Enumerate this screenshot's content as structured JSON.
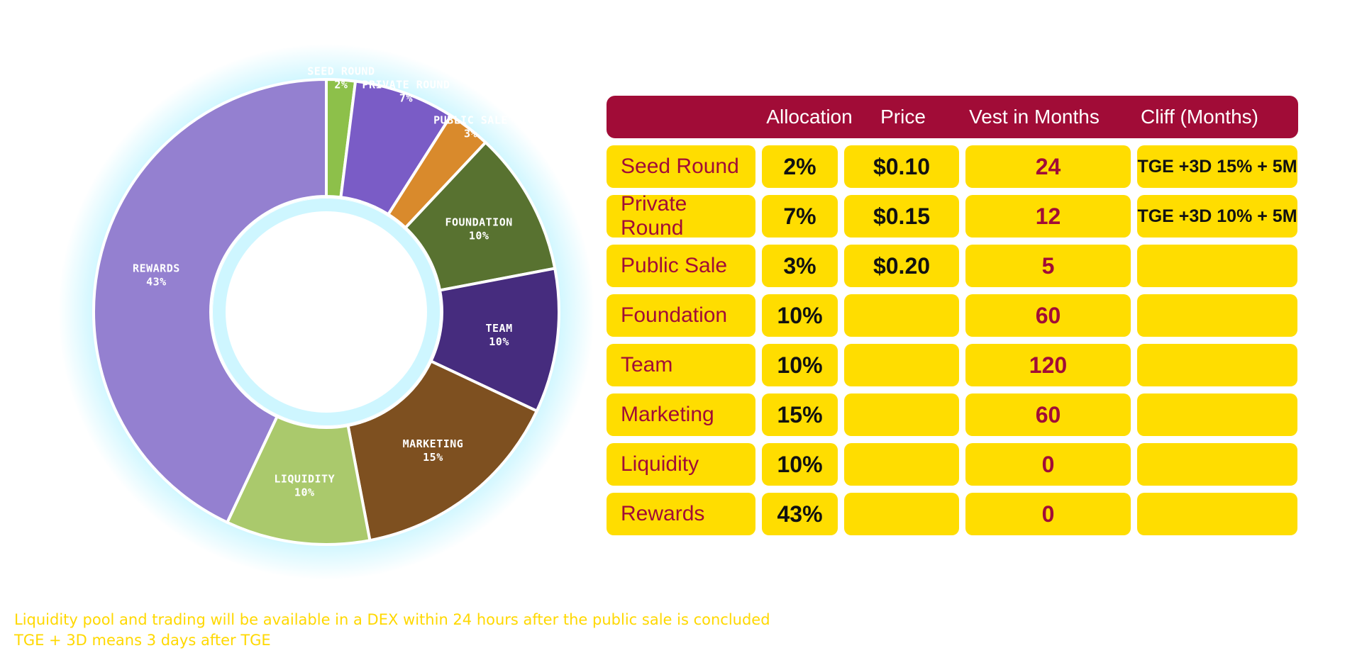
{
  "chart_data": [
    {
      "type": "pie",
      "title": "",
      "categories": [
        "SEED ROUND",
        "PRIVATE ROUND",
        "PUBLIC SALE",
        "FOUNDATION",
        "TEAM",
        "MARKETING",
        "LIQUIDITY",
        "REWARDS"
      ],
      "values": [
        2,
        7,
        3,
        10,
        10,
        15,
        10,
        43
      ],
      "value_labels": [
        "2%",
        "7%",
        "3%",
        "10%",
        "10%",
        "15%",
        "10%",
        "43%"
      ],
      "colors": [
        "#8dc04a",
        "#7a5cc6",
        "#d98a2c",
        "#587230",
        "#462c7e",
        "#7e5020",
        "#aac96c",
        "#9480d0"
      ],
      "hole": true
    },
    {
      "type": "table",
      "columns": [
        "",
        "Allocation",
        "Price",
        "Vest in Months",
        "Cliff (Months)"
      ],
      "rows": [
        [
          "Seed Round",
          "2%",
          "$0.10",
          "24",
          "TGE +3D 15% + 5M"
        ],
        [
          "Private Round",
          "7%",
          "$0.15",
          "12",
          "TGE +3D 10% + 5M"
        ],
        [
          "Public Sale",
          "3%",
          "$0.20",
          "5",
          ""
        ],
        [
          "Foundation",
          "10%",
          "",
          "60",
          ""
        ],
        [
          "Team",
          "10%",
          "",
          "120",
          ""
        ],
        [
          "Marketing",
          "15%",
          "",
          "60",
          ""
        ],
        [
          "Liquidity",
          "10%",
          "",
          "0",
          ""
        ],
        [
          "Rewards",
          "43%",
          "",
          "0",
          ""
        ]
      ]
    }
  ],
  "notes": [
    "Liquidity pool and trading will be available in a DEX within 24 hours after the public sale is concluded",
    "TGE + 3D means 3 days after TGE"
  ],
  "colors": {
    "header_bg": "#a10c37",
    "cell_bg": "#ffdd00",
    "name_text": "#a10c37",
    "note_text": "#ffd800",
    "glow": "#a6efff"
  }
}
